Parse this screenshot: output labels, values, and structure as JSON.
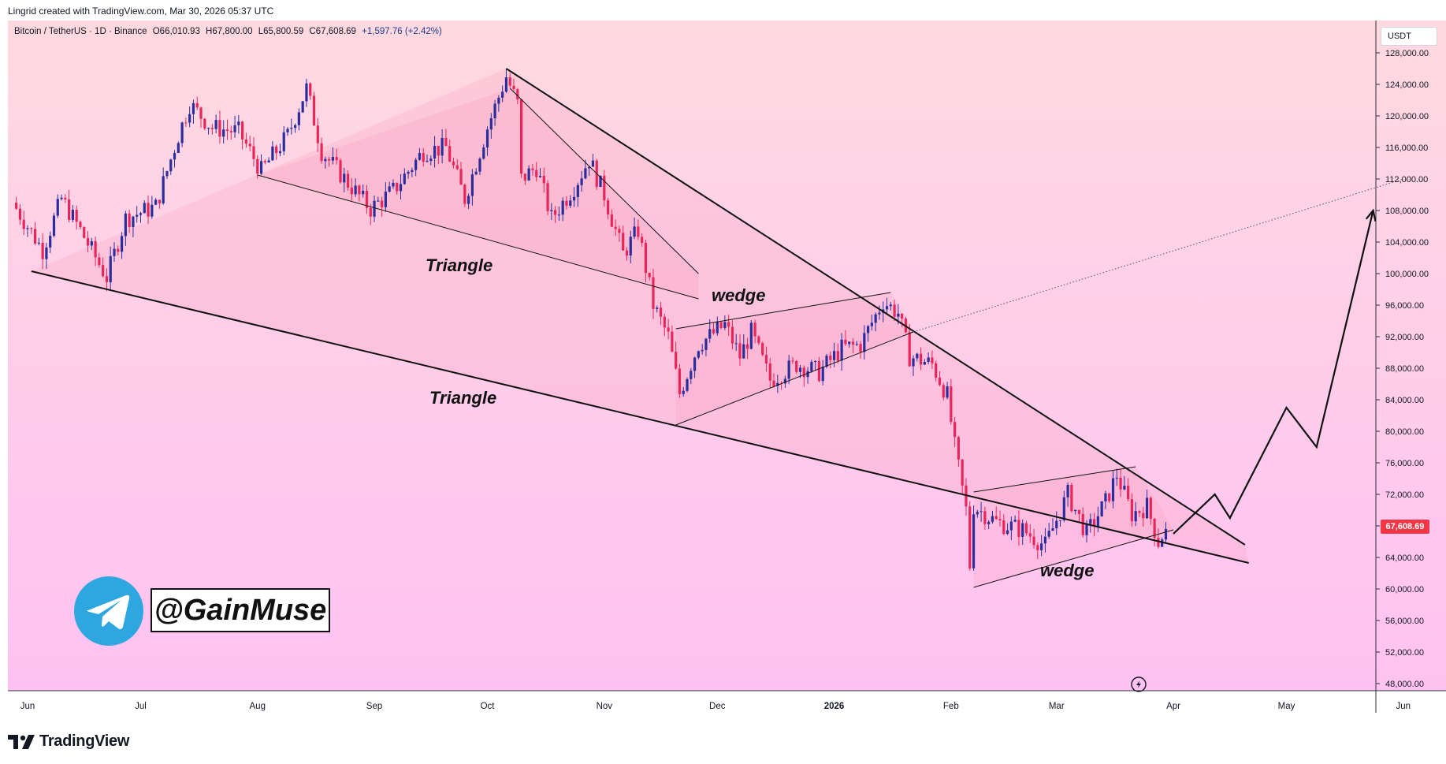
{
  "header": {
    "created_line": "Lingrid created with TradingView.com, Mar 30, 2026 05:37 UTC"
  },
  "legend": {
    "symbol": "Bitcoin / TetherUS · 1D · Binance",
    "open": "O66,010.93",
    "high": "H67,800.00",
    "low": "L65,800.59",
    "close": "C67,608.69",
    "change": "+1,597.76 (+2.42%)"
  },
  "currency": "USDT",
  "last_price_label": "67,608.69",
  "watermark": {
    "handle": "@GainMuse",
    "icon": "telegram-icon"
  },
  "footer": {
    "brand_label": "TradingView",
    "icon": "tradingview-logo-icon"
  },
  "annotations": {
    "triangle_upper": "Triangle",
    "triangle_lower": "Triangle",
    "wedge_upper": "wedge",
    "wedge_lower": "wedge"
  },
  "colors": {
    "bull": "#2a2e9c",
    "bear": "#e8265a",
    "pattern_fill": "#f7a6c2",
    "price_tag": "#f23645",
    "accent_blue": "#2ea6e0"
  },
  "chart_data": {
    "type": "candlestick",
    "xlabel": "",
    "ylabel": "",
    "x_ticks": [
      "Jun",
      "Jul",
      "Aug",
      "Sep",
      "Oct",
      "Nov",
      "Dec",
      "2026",
      "Feb",
      "Mar",
      "Apr",
      "May",
      "Jun"
    ],
    "y_ticks": [
      "128,000.00",
      "124,000.00",
      "120,000.00",
      "116,000.00",
      "112,000.00",
      "108,000.00",
      "104,000.00",
      "100,000.00",
      "96,000.00",
      "92,000.00",
      "88,000.00",
      "84,000.00",
      "80,000.00",
      "76,000.00",
      "72,000.00",
      "68,000.00",
      "64,000.00",
      "60,000.00",
      "56,000.00",
      "52,000.00",
      "48,000.00"
    ],
    "ylim": [
      46000,
      131000
    ],
    "x_range": [
      "2025-05-28",
      "2026-06-01"
    ],
    "close_path": [
      [
        "2025-05-28",
        109000
      ],
      [
        "2025-06-05",
        103000
      ],
      [
        "2025-06-10",
        109500
      ],
      [
        "2025-06-15",
        105500
      ],
      [
        "2025-06-22",
        99500
      ],
      [
        "2025-06-27",
        107000
      ],
      [
        "2025-07-05",
        108500
      ],
      [
        "2025-07-11",
        117500
      ],
      [
        "2025-07-14",
        121500
      ],
      [
        "2025-07-20",
        118500
      ],
      [
        "2025-07-27",
        118000
      ],
      [
        "2025-08-02",
        113000
      ],
      [
        "2025-08-09",
        117500
      ],
      [
        "2025-08-14",
        123500
      ],
      [
        "2025-08-18",
        115500
      ],
      [
        "2025-08-25",
        111500
      ],
      [
        "2025-08-31",
        108200
      ],
      [
        "2025-09-06",
        110500
      ],
      [
        "2025-09-14",
        115500
      ],
      [
        "2025-09-20",
        116000
      ],
      [
        "2025-09-25",
        109500
      ],
      [
        "2025-10-01",
        118500
      ],
      [
        "2025-10-06",
        125000
      ],
      [
        "2025-10-09",
        121500
      ],
      [
        "2025-10-10",
        112000
      ],
      [
        "2025-10-14",
        113500
      ],
      [
        "2025-10-18",
        107000
      ],
      [
        "2025-10-24",
        111000
      ],
      [
        "2025-10-28",
        114500
      ],
      [
        "2025-11-01",
        110000
      ],
      [
        "2025-11-06",
        102500
      ],
      [
        "2025-11-10",
        105500
      ],
      [
        "2025-11-14",
        96000
      ],
      [
        "2025-11-18",
        92000
      ],
      [
        "2025-11-21",
        84800
      ],
      [
        "2025-11-26",
        91000
      ],
      [
        "2025-12-03",
        93500
      ],
      [
        "2025-12-07",
        89500
      ],
      [
        "2025-12-10",
        92500
      ],
      [
        "2025-12-15",
        86500
      ],
      [
        "2025-12-22",
        88500
      ],
      [
        "2025-12-28",
        87500
      ],
      [
        "2026-01-03",
        90500
      ],
      [
        "2026-01-08",
        91000
      ],
      [
        "2026-01-14",
        96500
      ],
      [
        "2026-01-18",
        95000
      ],
      [
        "2026-01-21",
        89500
      ],
      [
        "2026-01-27",
        88500
      ],
      [
        "2026-01-31",
        84500
      ],
      [
        "2026-02-02",
        78000
      ],
      [
        "2026-02-05",
        70000
      ],
      [
        "2026-02-06",
        63000
      ],
      [
        "2026-02-07",
        70500
      ],
      [
        "2026-02-13",
        68500
      ],
      [
        "2026-02-20",
        67500
      ],
      [
        "2026-02-26",
        65500
      ],
      [
        "2026-03-04",
        72000
      ],
      [
        "2026-03-09",
        67000
      ],
      [
        "2026-03-14",
        71000
      ],
      [
        "2026-03-17",
        74500
      ],
      [
        "2026-03-21",
        69500
      ],
      [
        "2026-03-25",
        70500
      ],
      [
        "2026-03-28",
        66000
      ],
      [
        "2026-03-30",
        67608.69
      ]
    ],
    "trendlines": [
      {
        "name": "big-triangle-upper",
        "from": [
          "2025-10-06",
          126000
        ],
        "to": [
          "2026-04-20",
          65600
        ]
      },
      {
        "name": "big-triangle-lower",
        "from": [
          "2025-06-02",
          100300
        ],
        "to": [
          "2026-04-21",
          63300
        ]
      },
      {
        "name": "small-triangle-upper",
        "from": [
          "2025-10-07",
          123500
        ],
        "to": [
          "2025-11-26",
          100000
        ]
      },
      {
        "name": "small-triangle-lower",
        "from": [
          "2025-08-01",
          112500
        ],
        "to": [
          "2025-11-26",
          96800
        ]
      },
      {
        "name": "wedge1-upper",
        "from": [
          "2025-11-20",
          93000
        ],
        "to": [
          "2026-01-16",
          97600
        ]
      },
      {
        "name": "wedge1-lower",
        "from": [
          "2025-11-20",
          80800
        ],
        "to": [
          "2026-01-22",
          92600
        ]
      },
      {
        "name": "wedge2-upper",
        "from": [
          "2026-02-07",
          72300
        ],
        "to": [
          "2026-03-22",
          75500
        ]
      },
      {
        "name": "wedge2-lower",
        "from": [
          "2026-02-07",
          60200
        ],
        "to": [
          "2026-04-01",
          67500
        ]
      },
      {
        "name": "breakout-projection",
        "from": [
          "2026-01-22",
          92600
        ],
        "to": [
          "2026-06-01",
          112000
        ],
        "dotted": true
      }
    ],
    "projection_path": [
      [
        "2026-04-01",
        67000
      ],
      [
        "2026-04-12",
        72000
      ],
      [
        "2026-04-16",
        69000
      ],
      [
        "2026-05-01",
        83000
      ],
      [
        "2026-05-09",
        78000
      ],
      [
        "2026-05-24",
        108000
      ]
    ],
    "last_price": 67608.69
  }
}
